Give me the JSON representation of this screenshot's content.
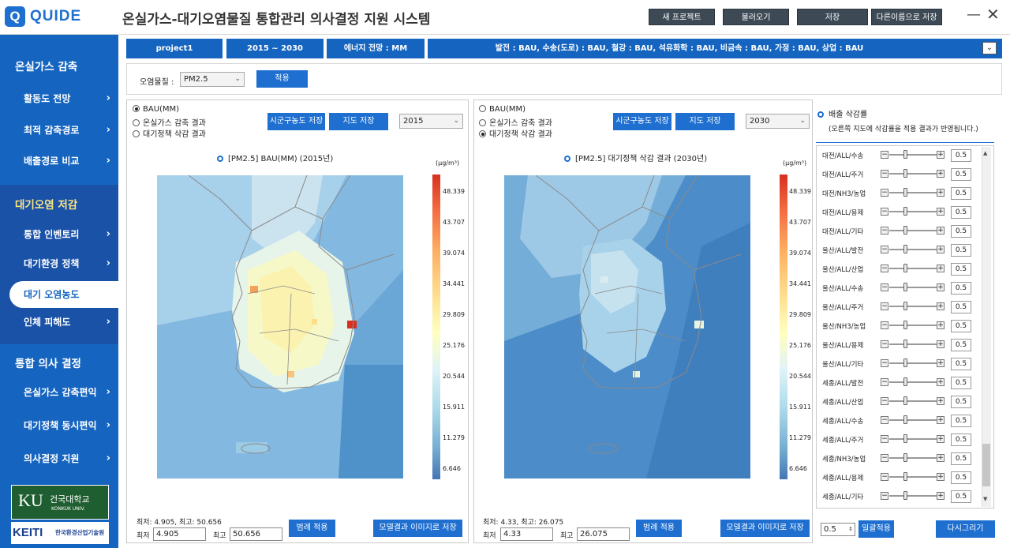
{
  "app": {
    "logo_letter": "Q",
    "logo_text": "QUIDE",
    "title": "온실가스-대기오염물질 통합관리 의사결정 지원 시스템",
    "buttons": {
      "new": "새 프로젝트",
      "load": "불러오기",
      "save": "저장",
      "save_as": "다른이름으로 저장"
    },
    "win_min": "—",
    "win_close": "✕"
  },
  "sidebar": {
    "sections": [
      {
        "title": "온실가스 감축",
        "items": [
          "활동도 전망",
          "최적 감축경로",
          "배출경로 비교"
        ]
      },
      {
        "title": "대기오염 저감",
        "items": [
          "통합 인벤토리",
          "대기환경 정책",
          "대기 오염농도",
          "인체 피해도"
        ]
      },
      {
        "title": "통합 의사 결정",
        "items": [
          "온실가스 감축편익",
          "대기정책 동시편익",
          "의사결정 지원"
        ]
      }
    ],
    "active_item": "대기 오염농도",
    "chevron": "›",
    "ku_logo": {
      "mark": "KU",
      "name": "건국대학교",
      "eng": "KONKUK UNIV."
    },
    "keiti_logo": {
      "mark": "KEITI",
      "name": "한국환경산업기술원"
    }
  },
  "infobar": {
    "project": "project1",
    "period": "2015  ~  2030",
    "energy": "에너지 전망 : MM",
    "scenario": "발전 : BAU,   수송(도로) : BAU,   철강 : BAU,   석유화학 : BAU,   비금속 : BAU,   가정 : BAU,   상업 : BAU",
    "dropdown_icon": "⌄"
  },
  "filter": {
    "pollutant_label": "오염물질 :",
    "pollutant_value": "PM2.5",
    "apply": "적용"
  },
  "left_panel": {
    "radios": [
      "BAU(MM)",
      "온실가스 감축 결과",
      "대기정책 삭감 결과"
    ],
    "selected": 0,
    "btn_sigungu": "시군구농도 저장",
    "btn_map": "지도 저장",
    "year": "2015",
    "map_title": "[PM2.5] BAU(MM) (2015년)",
    "unit": "(μg/m³)",
    "legend": [
      "48.339",
      "43.707",
      "39.074",
      "34.441",
      "29.809",
      "25.176",
      "20.544",
      "15.911",
      "11.279",
      "6.646"
    ],
    "minmax": "최저: 4.905, 최고: 50.656",
    "min_label": "최저",
    "max_label": "최고",
    "min_value": "4.905",
    "max_value": "50.656",
    "btn_legend": "범례 적용",
    "btn_image": "모델결과 이미지로 저장"
  },
  "right_panel": {
    "radios": [
      "BAU(MM)",
      "온실가스 감축 결과",
      "대기정책 삭감 결과"
    ],
    "selected": 2,
    "btn_sigungu": "시군구농도 저장",
    "btn_map": "지도 저장",
    "year": "2030",
    "map_title": "[PM2.5] 대기정책 삭감 결과 (2030년)",
    "unit": "(μg/m³)",
    "legend": [
      "48.339",
      "43.707",
      "39.074",
      "34.441",
      "29.809",
      "25.176",
      "20.544",
      "15.911",
      "11.279",
      "6.646"
    ],
    "minmax": "최저: 4.33, 최고: 26.075",
    "min_label": "최저",
    "max_label": "최고",
    "min_value": "4.33",
    "max_value": "26.075",
    "btn_legend": "범례 적용",
    "btn_image": "모델결과 이미지로 저장"
  },
  "reduction": {
    "title": "배출 삭감률",
    "note": "(오른쪽 지도에 삭감률을 적용 결과가 반영됩니다.)",
    "minus": "−",
    "plus": "+",
    "rows": [
      {
        "name": "대전/ALL/수송",
        "value": "0.5"
      },
      {
        "name": "대전/ALL/주거",
        "value": "0.5"
      },
      {
        "name": "대전/NH3/농업",
        "value": "0.5"
      },
      {
        "name": "대전/ALL/용제",
        "value": "0.5"
      },
      {
        "name": "대전/ALL/기타",
        "value": "0.5"
      },
      {
        "name": "울산/ALL/발전",
        "value": "0.5"
      },
      {
        "name": "울산/ALL/산업",
        "value": "0.5"
      },
      {
        "name": "울산/ALL/수송",
        "value": "0.5"
      },
      {
        "name": "울산/ALL/주거",
        "value": "0.5"
      },
      {
        "name": "울산/NH3/농업",
        "value": "0.5"
      },
      {
        "name": "울산/ALL/용제",
        "value": "0.5"
      },
      {
        "name": "울산/ALL/기타",
        "value": "0.5"
      },
      {
        "name": "세종/ALL/발전",
        "value": "0.5"
      },
      {
        "name": "세종/ALL/산업",
        "value": "0.5"
      },
      {
        "name": "세종/ALL/수송",
        "value": "0.5"
      },
      {
        "name": "세종/ALL/주거",
        "value": "0.5"
      },
      {
        "name": "세종/NH3/농업",
        "value": "0.5"
      },
      {
        "name": "세종/ALL/용제",
        "value": "0.5"
      },
      {
        "name": "세종/ALL/기타",
        "value": "0.5"
      }
    ],
    "bulk_value": "0.5",
    "btn_bulk": "일괄적용",
    "btn_redraw": "다시그리기"
  },
  "colors": {
    "brand": "#1565c0",
    "accent": "#1e6fd0",
    "topbtn": "#3d4a55"
  }
}
